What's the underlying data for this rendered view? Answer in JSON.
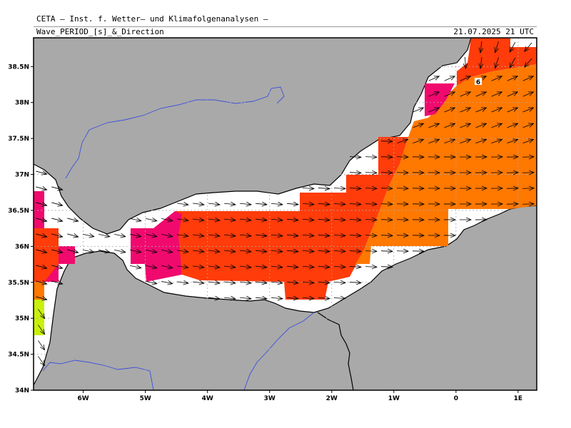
{
  "header": {
    "line1": "CETA – Inst. f. Wetter– und Klimafolgenanalysen –",
    "line2": "Wave_PERIOD_[s]_&_Direction",
    "datetime": "21.07.2025 21 UTC"
  },
  "map": {
    "lon_range": [
      -6.8,
      1.3
    ],
    "lat_range": [
      34.0,
      38.9
    ],
    "lat_ticks": [
      "38.5N",
      "38N",
      "37.5N",
      "37N",
      "36.5N",
      "36N",
      "35.5N",
      "35N",
      "34.5N",
      "34N"
    ],
    "lon_ticks": [
      "6W",
      "5W",
      "4W",
      "3W",
      "2W",
      "1W",
      "0",
      "1E"
    ],
    "contour_label": "6",
    "colors": {
      "land": "#a9a9a9",
      "sea": "#ffffff",
      "period_magenta": "#f00a6e",
      "period_red_orange": "#ff3c0a",
      "period_orange": "#ff7800",
      "period_lime": "#c8f00a",
      "river": "#3c50dc",
      "grid": "#aaaaaa"
    }
  }
}
